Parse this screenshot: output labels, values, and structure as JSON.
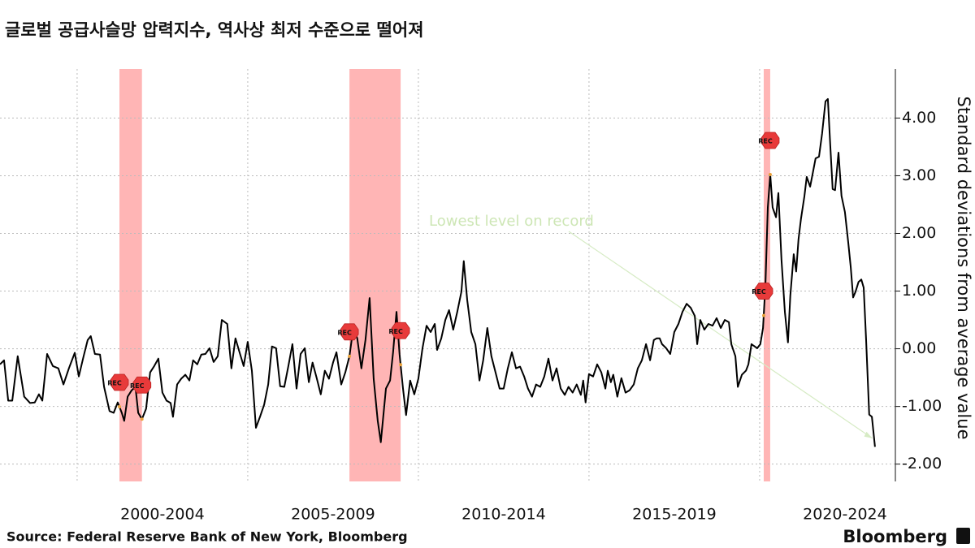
{
  "chart_data": {
    "type": "line",
    "title": "글로벌 공급사슬망 압력지수, 역사상 최저 수준으로 떨어져",
    "y_axis_label": "Standard deviations from average value",
    "source": "Source: Federal Reserve Bank of New York, Bloomberg",
    "brand": "Bloomberg",
    "annotation": {
      "text": "Lowest level on record",
      "x": 2023.3,
      "y": -1.55
    },
    "xlim": [
      1997.74,
      2023.93
    ],
    "ylim": [
      -2.3,
      4.85
    ],
    "yticks": [
      {
        "value": -2,
        "label": "-2.00"
      },
      {
        "value": -1,
        "label": "-1.00"
      },
      {
        "value": 0,
        "label": "0.00"
      },
      {
        "value": 1,
        "label": "1.00"
      },
      {
        "value": 2,
        "label": "2.00"
      },
      {
        "value": 3,
        "label": "3.00"
      },
      {
        "value": 4,
        "label": "4.00"
      }
    ],
    "x_periods": [
      {
        "start": 2000,
        "end": 2005,
        "label": "2000-2004"
      },
      {
        "start": 2005,
        "end": 2010,
        "label": "2005-2009"
      },
      {
        "start": 2010,
        "end": 2015,
        "label": "2010-2014"
      },
      {
        "start": 2015,
        "end": 2020,
        "label": "2015-2019"
      },
      {
        "start": 2020,
        "end": 2025,
        "label": "2020-2024"
      }
    ],
    "grid": true,
    "recessions": [
      {
        "start": 2001.24,
        "end": 2001.9,
        "label": "REC"
      },
      {
        "start": 2007.98,
        "end": 2009.48,
        "label": "REC"
      },
      {
        "start": 2020.12,
        "end": 2020.31,
        "label": "REC"
      }
    ],
    "recession_color": "#ff9c9c",
    "series": [
      {
        "color": "#000000",
        "x": [
          1997.74,
          1997.86,
          1997.98,
          1998.1,
          1998.26,
          1998.45,
          1998.62,
          1998.76,
          1998.88,
          1998.98,
          1999.12,
          1999.29,
          1999.45,
          1999.6,
          1999.76,
          1999.93,
          2000.05,
          2000.19,
          2000.31,
          2000.4,
          2000.52,
          2000.67,
          2000.79,
          2000.95,
          2001.07,
          2001.19,
          2001.31,
          2001.38,
          2001.48,
          2001.6,
          2001.71,
          2001.79,
          2001.9,
          2002.02,
          2002.14,
          2002.26,
          2002.38,
          2002.5,
          2002.62,
          2002.74,
          2002.81,
          2002.93,
          2003.05,
          2003.17,
          2003.29,
          2003.4,
          2003.52,
          2003.64,
          2003.76,
          2003.88,
          2004.0,
          2004.12,
          2004.24,
          2004.4,
          2004.52,
          2004.64,
          2004.76,
          2004.88,
          2005.0,
          2005.12,
          2005.24,
          2005.36,
          2005.48,
          2005.6,
          2005.71,
          2005.83,
          2005.95,
          2006.07,
          2006.19,
          2006.31,
          2006.43,
          2006.55,
          2006.67,
          2006.79,
          2006.9,
          2007.02,
          2007.14,
          2007.26,
          2007.38,
          2007.5,
          2007.6,
          2007.74,
          2007.86,
          2007.98,
          2008.1,
          2008.21,
          2008.33,
          2008.45,
          2008.57,
          2008.69,
          2008.81,
          2008.9,
          2009.05,
          2009.17,
          2009.26,
          2009.36,
          2009.45,
          2009.55,
          2009.64,
          2009.76,
          2009.88,
          2010.0,
          2010.12,
          2010.24,
          2010.36,
          2010.48,
          2010.55,
          2010.67,
          2010.79,
          2010.9,
          2011.02,
          2011.14,
          2011.26,
          2011.33,
          2011.43,
          2011.55,
          2011.67,
          2011.79,
          2011.9,
          2012.02,
          2012.14,
          2012.26,
          2012.38,
          2012.5,
          2012.62,
          2012.74,
          2012.86,
          2012.98,
          2013.1,
          2013.21,
          2013.33,
          2013.45,
          2013.57,
          2013.69,
          2013.81,
          2013.93,
          2014.05,
          2014.17,
          2014.29,
          2014.4,
          2014.52,
          2014.64,
          2014.76,
          2014.83,
          2014.9,
          2015.0,
          2015.12,
          2015.24,
          2015.36,
          2015.48,
          2015.55,
          2015.64,
          2015.71,
          2015.83,
          2015.95,
          2016.07,
          2016.19,
          2016.31,
          2016.43,
          2016.55,
          2016.67,
          2016.79,
          2016.9,
          2016.98,
          2017.07,
          2017.14,
          2017.26,
          2017.38,
          2017.5,
          2017.62,
          2017.74,
          2017.86,
          2017.98,
          2018.1,
          2018.17,
          2018.26,
          2018.38,
          2018.5,
          2018.62,
          2018.74,
          2018.86,
          2018.98,
          2019.1,
          2019.17,
          2019.29,
          2019.36,
          2019.48,
          2019.6,
          2019.67,
          2019.76,
          2019.83,
          2019.93,
          2020.02,
          2020.1,
          2020.17,
          2020.24,
          2020.31,
          2020.38,
          2020.48,
          2020.55,
          2020.64,
          2020.74,
          2020.83,
          2020.9,
          2021.0,
          2021.07,
          2021.14,
          2021.21,
          2021.31,
          2021.38,
          2021.48,
          2021.55,
          2021.64,
          2021.74,
          2021.83,
          2021.93,
          2022.0,
          2022.07,
          2022.14,
          2022.21,
          2022.31,
          2022.4,
          2022.5,
          2022.6,
          2022.67,
          2022.74,
          2022.81,
          2022.9,
          2022.98,
          2023.05,
          2023.12,
          2023.21,
          2023.29,
          2023.38
        ],
        "values": [
          -0.27,
          -0.2,
          -0.9,
          -0.9,
          -0.13,
          -0.83,
          -0.94,
          -0.93,
          -0.79,
          -0.9,
          -0.09,
          -0.3,
          -0.34,
          -0.62,
          -0.34,
          -0.07,
          -0.48,
          -0.13,
          0.15,
          0.22,
          -0.09,
          -0.1,
          -0.66,
          -1.08,
          -1.11,
          -0.93,
          -1.11,
          -1.25,
          -0.83,
          -0.72,
          -0.66,
          -1.11,
          -1.22,
          -1.04,
          -0.41,
          -0.3,
          -0.17,
          -0.76,
          -0.9,
          -0.94,
          -1.18,
          -0.62,
          -0.52,
          -0.45,
          -0.55,
          -0.2,
          -0.27,
          -0.1,
          -0.09,
          0.01,
          -0.23,
          -0.13,
          0.5,
          0.43,
          -0.34,
          0.18,
          -0.06,
          -0.3,
          0.12,
          -0.38,
          -1.37,
          -1.18,
          -0.97,
          -0.62,
          0.04,
          0.01,
          -0.65,
          -0.66,
          -0.3,
          0.08,
          -0.69,
          -0.09,
          0.01,
          -0.58,
          -0.24,
          -0.51,
          -0.79,
          -0.38,
          -0.52,
          -0.24,
          -0.06,
          -0.62,
          -0.41,
          -0.13,
          0.39,
          0.18,
          -0.34,
          0.15,
          0.88,
          -0.52,
          -1.25,
          -1.62,
          -0.69,
          -0.55,
          -0.06,
          0.64,
          -0.1,
          -0.69,
          -1.15,
          -0.55,
          -0.79,
          -0.52,
          0.01,
          0.4,
          0.29,
          0.43,
          -0.02,
          0.18,
          0.5,
          0.67,
          0.33,
          0.64,
          0.99,
          1.52,
          0.85,
          0.29,
          0.08,
          -0.55,
          -0.2,
          0.36,
          -0.13,
          -0.41,
          -0.69,
          -0.69,
          -0.34,
          -0.06,
          -0.34,
          -0.31,
          -0.48,
          -0.69,
          -0.83,
          -0.62,
          -0.66,
          -0.48,
          -0.17,
          -0.55,
          -0.34,
          -0.69,
          -0.8,
          -0.66,
          -0.76,
          -0.62,
          -0.8,
          -0.55,
          -0.93,
          -0.44,
          -0.48,
          -0.27,
          -0.41,
          -0.69,
          -0.38,
          -0.58,
          -0.45,
          -0.83,
          -0.51,
          -0.76,
          -0.72,
          -0.62,
          -0.34,
          -0.2,
          0.08,
          -0.2,
          0.15,
          0.18,
          0.18,
          0.08,
          0.01,
          -0.09,
          0.29,
          0.43,
          0.64,
          0.78,
          0.71,
          0.57,
          0.08,
          0.5,
          0.33,
          0.43,
          0.4,
          0.53,
          0.36,
          0.5,
          0.46,
          0.08,
          -0.13,
          -0.66,
          -0.45,
          -0.38,
          -0.27,
          0.08,
          0.05,
          0.01,
          0.08,
          0.36,
          1.12,
          2.45,
          3.02,
          2.45,
          2.28,
          2.7,
          1.55,
          0.64,
          0.11,
          0.92,
          1.64,
          1.34,
          1.9,
          2.25,
          2.64,
          2.98,
          2.81,
          3.02,
          3.3,
          3.33,
          3.73,
          4.29,
          4.33,
          3.52,
          2.77,
          2.75,
          3.4,
          2.65,
          2.37,
          1.83,
          1.41,
          0.89,
          0.99,
          1.16,
          1.2,
          1.06,
          0.15,
          -1.14,
          -1.18,
          -1.7
        ]
      }
    ]
  }
}
